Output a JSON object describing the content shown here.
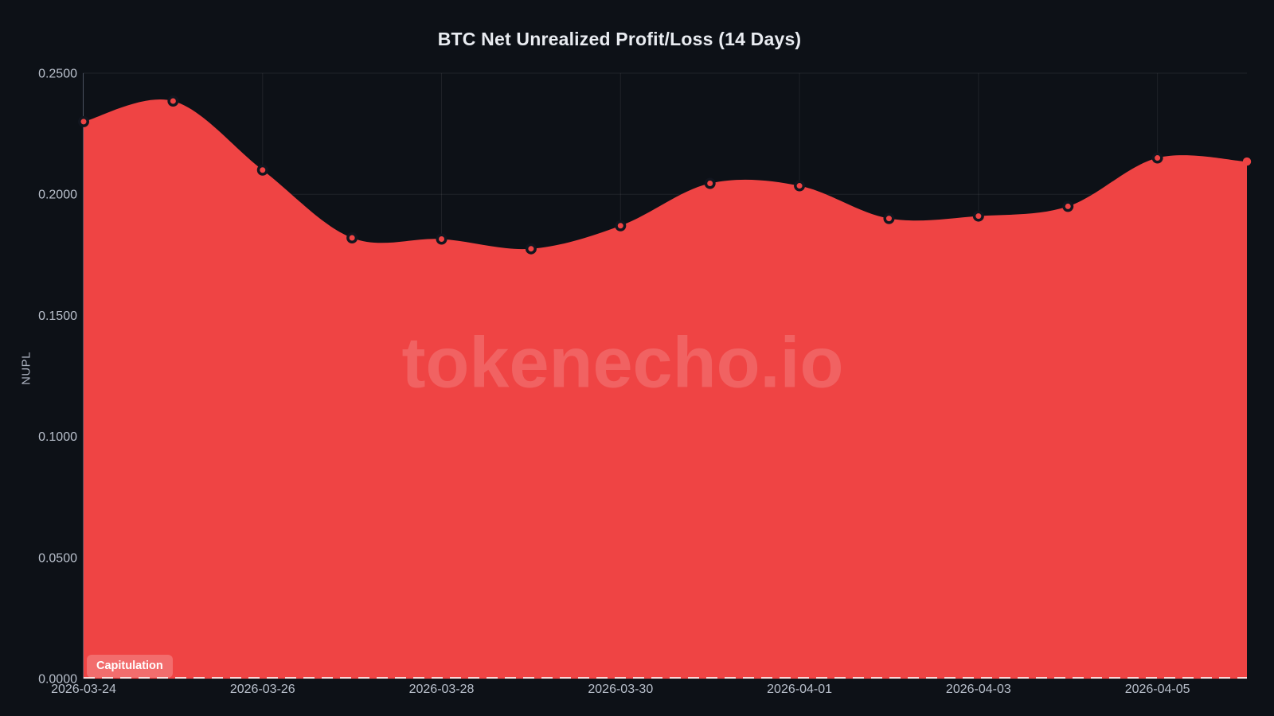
{
  "page": {
    "title": "BTC Net Unrealized Profit/Loss (14 Days)",
    "watermark": "tokenecho.io"
  },
  "badge": {
    "label": "Capitulation"
  },
  "chart_data": {
    "type": "area",
    "title": "BTC Net Unrealized Profit/Loss (14 Days)",
    "ylabel": "NUPL",
    "xlabel": "",
    "x": [
      "2026-03-24",
      "2026-03-25",
      "2026-03-26",
      "2026-03-27",
      "2026-03-28",
      "2026-03-29",
      "2026-03-30",
      "2026-03-31",
      "2026-04-01",
      "2026-04-02",
      "2026-04-03",
      "2026-04-04",
      "2026-04-05",
      "2026-04-06"
    ],
    "values": [
      0.23,
      0.2385,
      0.21,
      0.182,
      0.1815,
      0.1775,
      0.187,
      0.2045,
      0.2035,
      0.19,
      0.191,
      0.195,
      0.215,
      0.2135
    ],
    "ylim": [
      0.0,
      0.25
    ],
    "yticks": [
      0.25,
      0.2,
      0.15,
      0.1,
      0.05,
      0.0
    ],
    "ytick_labels": [
      "0.2500",
      "0.2000",
      "0.1500",
      "0.1000",
      "0.0500",
      "0.0000"
    ],
    "xtick_indices": [
      0,
      2,
      4,
      6,
      8,
      10,
      12
    ],
    "xtick_labels": [
      "2026-03-24",
      "2026-03-26",
      "2026-03-28",
      "2026-03-30",
      "2026-04-01",
      "2026-04-03",
      "2026-04-05"
    ],
    "grid": true,
    "legend": false,
    "smooth": true,
    "zero_line_style": "dashed",
    "annotation": "Capitulation",
    "colors": {
      "background": "#0d1117",
      "area": "#ef4444",
      "marker_fill": "#ef4444",
      "marker_ring": "#12161f",
      "grid": "rgba(255,255,255,0.075)",
      "axis": "#4a5160",
      "tick_text": "#b9c0cc",
      "title_text": "#e9ecf1",
      "zero_line": "rgba(255,255,255,0.8)"
    }
  }
}
